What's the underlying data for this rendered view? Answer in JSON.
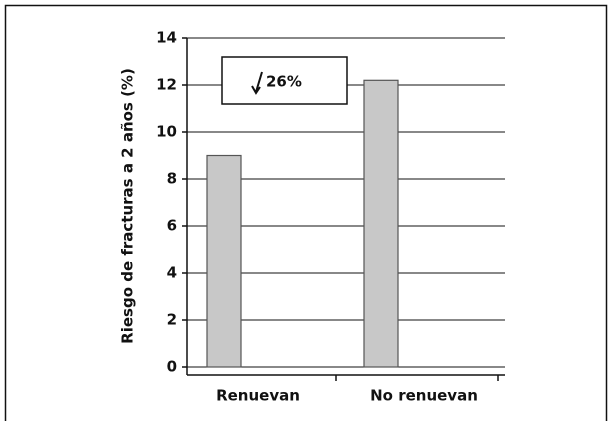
{
  "chart_data": {
    "type": "bar",
    "y_label": "Riesgo de fracturas a 2 años (%)",
    "categories": [
      "Renuevan",
      "No renuevan"
    ],
    "values": [
      9.0,
      12.2
    ],
    "color": "#c8c8c8",
    "ylim": [
      0,
      14
    ],
    "yticks": [
      0,
      2,
      4,
      6,
      8,
      10,
      12,
      14
    ],
    "grid": true,
    "annotation": "26%"
  }
}
